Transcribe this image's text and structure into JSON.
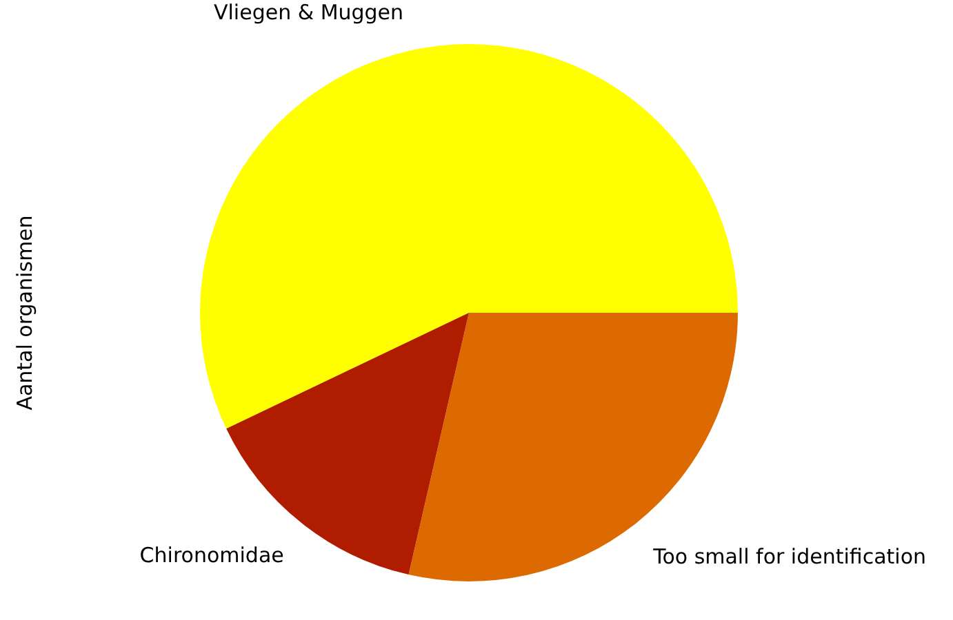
{
  "chart_data": {
    "type": "pie",
    "ylabel": "Aantal organismen",
    "categories": [
      "Vliegen & Muggen",
      "Too small for identification",
      "Chironomidae"
    ],
    "values": [
      57.1,
      28.6,
      14.3
    ],
    "colors": [
      "#ffff00",
      "#dd6a00",
      "#b01c00"
    ],
    "legend": false
  }
}
